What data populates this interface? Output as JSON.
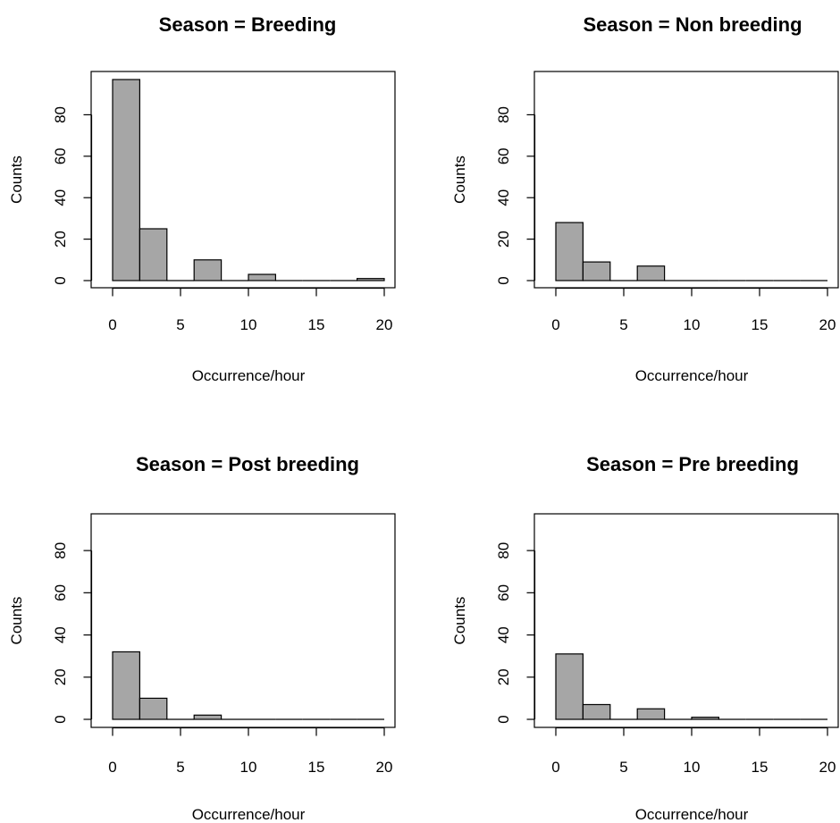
{
  "colors": {
    "bar_fill": "#a6a6a6",
    "bar_stroke": "#000000",
    "background": "#ffffff"
  },
  "chart_data": [
    {
      "type": "bar",
      "title": "Season = Breeding",
      "xlabel": "Occurrence/hour",
      "ylabel": "Counts",
      "bin_edges": [
        0,
        2,
        4,
        6,
        8,
        10,
        12,
        14,
        16,
        18,
        20
      ],
      "values": [
        97,
        25,
        0,
        10,
        0,
        3,
        0,
        0,
        0,
        1
      ],
      "xlim": [
        0,
        20
      ],
      "ylim": [
        0,
        97
      ],
      "xticks": [
        0,
        5,
        10,
        15,
        20
      ],
      "yticks": [
        0,
        20,
        40,
        60,
        80
      ],
      "grid": false
    },
    {
      "type": "bar",
      "title": "Season = Non breeding",
      "xlabel": "Occurrence/hour",
      "ylabel": "Counts",
      "bin_edges": [
        0,
        2,
        4,
        6,
        8,
        10,
        12,
        14,
        16,
        18,
        20
      ],
      "values": [
        28,
        9,
        0,
        7,
        0,
        0,
        0,
        0,
        0,
        0
      ],
      "xlim": [
        0,
        20
      ],
      "ylim": [
        0,
        97
      ],
      "xticks": [
        0,
        5,
        10,
        15,
        20
      ],
      "yticks": [
        0,
        20,
        40,
        60,
        80
      ],
      "grid": false
    },
    {
      "type": "bar",
      "title": "Season = Post breeding",
      "xlabel": "Occurrence/hour",
      "ylabel": "Counts",
      "bin_edges": [
        0,
        2,
        4,
        6,
        8,
        10,
        12,
        14,
        16,
        18,
        20
      ],
      "values": [
        32,
        10,
        0,
        2,
        0,
        0,
        0,
        0,
        0,
        0
      ],
      "xlim": [
        0,
        20
      ],
      "ylim": [
        0,
        97
      ],
      "xticks": [
        0,
        5,
        10,
        15,
        20
      ],
      "yticks": [
        0,
        20,
        40,
        60,
        80
      ],
      "grid": false
    },
    {
      "type": "bar",
      "title": "Season = Pre breeding",
      "xlabel": "Occurrence/hour",
      "ylabel": "Counts",
      "bin_edges": [
        0,
        2,
        4,
        6,
        8,
        10,
        12,
        14,
        16,
        18,
        20
      ],
      "values": [
        31,
        7,
        0,
        5,
        0,
        1,
        0,
        0,
        0,
        0
      ],
      "xlim": [
        0,
        20
      ],
      "ylim": [
        0,
        97
      ],
      "xticks": [
        0,
        5,
        10,
        15,
        20
      ],
      "yticks": [
        0,
        20,
        40,
        60,
        80
      ],
      "grid": false
    }
  ]
}
